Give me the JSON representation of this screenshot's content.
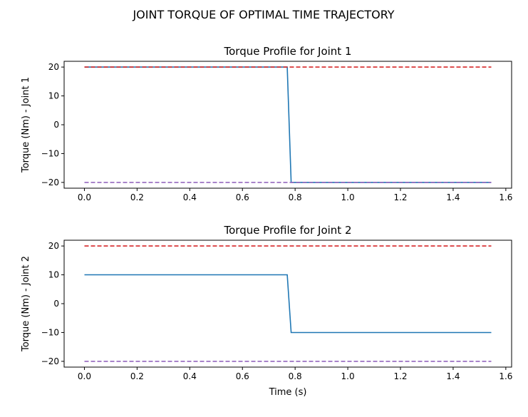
{
  "figure": {
    "title": "JOINT TORQUE OF OPTIMAL TIME TRAJECTORY"
  },
  "chart_data": [
    {
      "type": "line",
      "title": "Torque Profile for Joint 1",
      "xlabel": "",
      "ylabel": "Torque (Nm) - Joint 1",
      "xlim": [
        -0.077,
        1.622
      ],
      "ylim": [
        -22,
        22
      ],
      "xticks": [
        "0.0",
        "0.2",
        "0.4",
        "0.6",
        "0.8",
        "1.0",
        "1.2",
        "1.4",
        "1.6"
      ],
      "yticks": [
        "20",
        "10",
        "0",
        "−10",
        "−20"
      ],
      "grid": false,
      "series": [
        {
          "x": [
            0.0,
            0.77,
            0.785,
            1.545
          ],
          "values": [
            20,
            20,
            -20,
            -20
          ],
          "color": "#1f77b4",
          "style": "solid"
        },
        {
          "x": [
            0.0,
            1.545
          ],
          "values": [
            20,
            20
          ],
          "color": "#d62728",
          "style": "dashed"
        },
        {
          "x": [
            0.0,
            1.545
          ],
          "values": [
            -20,
            -20
          ],
          "color": "#9467bd",
          "style": "dashed"
        }
      ]
    },
    {
      "type": "line",
      "title": "Torque Profile for Joint 2",
      "xlabel": "Time (s)",
      "ylabel": "Torque (Nm) - Joint 2",
      "xlim": [
        -0.077,
        1.622
      ],
      "ylim": [
        -22,
        22
      ],
      "xticks": [
        "0.0",
        "0.2",
        "0.4",
        "0.6",
        "0.8",
        "1.0",
        "1.2",
        "1.4",
        "1.6"
      ],
      "yticks": [
        "20",
        "10",
        "0",
        "−10",
        "−20"
      ],
      "grid": false,
      "series": [
        {
          "x": [
            0.0,
            0.77,
            0.785,
            1.545
          ],
          "values": [
            10,
            10,
            -10,
            -10
          ],
          "color": "#1f77b4",
          "style": "solid"
        },
        {
          "x": [
            0.0,
            1.545
          ],
          "values": [
            20,
            20
          ],
          "color": "#d62728",
          "style": "dashed"
        },
        {
          "x": [
            0.0,
            1.545
          ],
          "values": [
            -20,
            -20
          ],
          "color": "#9467bd",
          "style": "dashed"
        }
      ]
    }
  ]
}
